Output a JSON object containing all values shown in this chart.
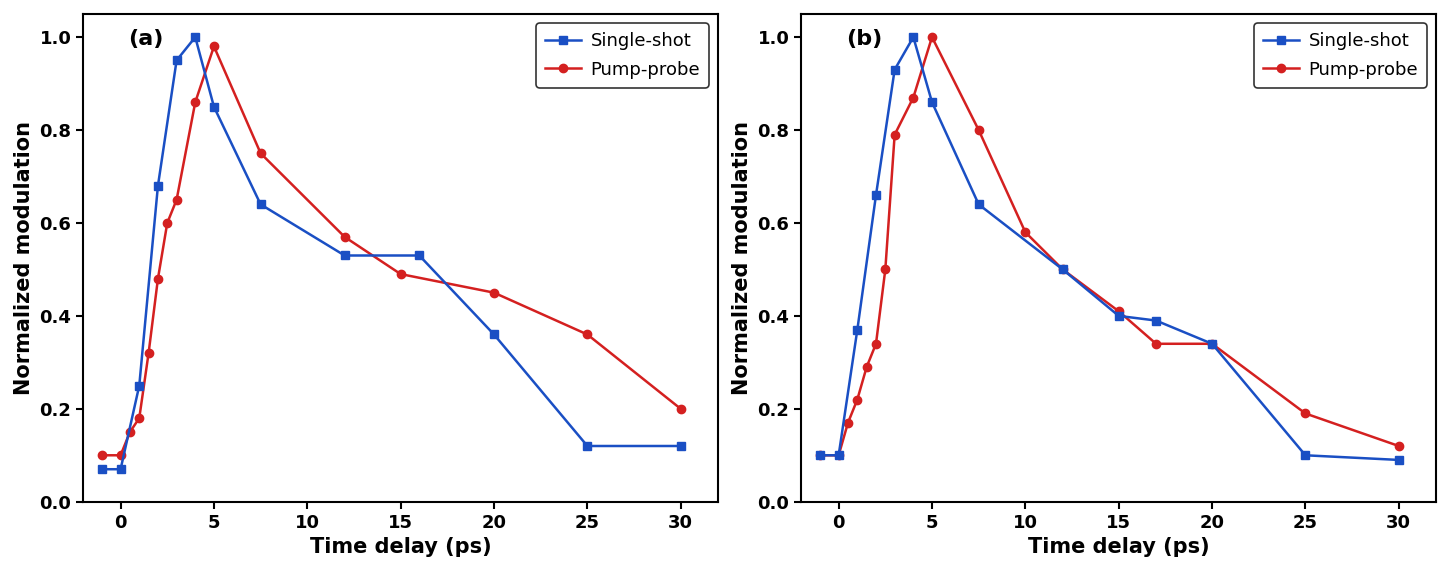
{
  "panel_a": {
    "single_shot_x": [
      -1,
      0,
      1,
      2,
      3,
      4,
      5,
      7.5,
      12,
      16,
      20,
      25,
      30
    ],
    "single_shot_y": [
      0.07,
      0.07,
      0.25,
      0.68,
      0.95,
      1.0,
      0.85,
      0.64,
      0.53,
      0.53,
      0.36,
      0.12,
      0.12
    ],
    "pump_probe_x": [
      -1,
      0,
      0.5,
      1,
      1.5,
      2,
      2.5,
      3,
      4,
      5,
      7.5,
      12,
      15,
      20,
      25,
      30
    ],
    "pump_probe_y": [
      0.1,
      0.1,
      0.15,
      0.18,
      0.32,
      0.48,
      0.6,
      0.65,
      0.86,
      0.98,
      0.75,
      0.57,
      0.49,
      0.45,
      0.36,
      0.2
    ]
  },
  "panel_b": {
    "single_shot_x": [
      -1,
      0,
      1,
      2,
      3,
      4,
      5,
      7.5,
      12,
      15,
      17,
      20,
      25,
      30
    ],
    "single_shot_y": [
      0.1,
      0.1,
      0.37,
      0.66,
      0.93,
      1.0,
      0.86,
      0.64,
      0.5,
      0.4,
      0.39,
      0.34,
      0.1,
      0.09
    ],
    "pump_probe_x": [
      -1,
      0,
      0.5,
      1,
      1.5,
      2,
      2.5,
      3,
      4,
      5,
      7.5,
      10,
      12,
      15,
      17,
      20,
      25,
      30
    ],
    "pump_probe_y": [
      0.1,
      0.1,
      0.17,
      0.22,
      0.29,
      0.34,
      0.5,
      0.79,
      0.87,
      1.0,
      0.8,
      0.58,
      0.5,
      0.41,
      0.34,
      0.34,
      0.19,
      0.12
    ]
  },
  "blue_color": "#1a4fc4",
  "red_color": "#d42020",
  "xlabel": "Time delay (ps)",
  "ylabel": "Normalized modulation",
  "label_single": "Single-shot",
  "label_pump": "Pump-probe",
  "xlim": [
    -2,
    32
  ],
  "ylim": [
    0.0,
    1.05
  ],
  "xticks": [
    0,
    5,
    10,
    15,
    20,
    25,
    30
  ],
  "yticks": [
    0.0,
    0.2,
    0.4,
    0.6,
    0.8,
    1.0
  ],
  "panel_labels": [
    "(a)",
    "(b)"
  ],
  "linewidth": 1.8,
  "markersize_square": 6,
  "markersize_circle": 6
}
